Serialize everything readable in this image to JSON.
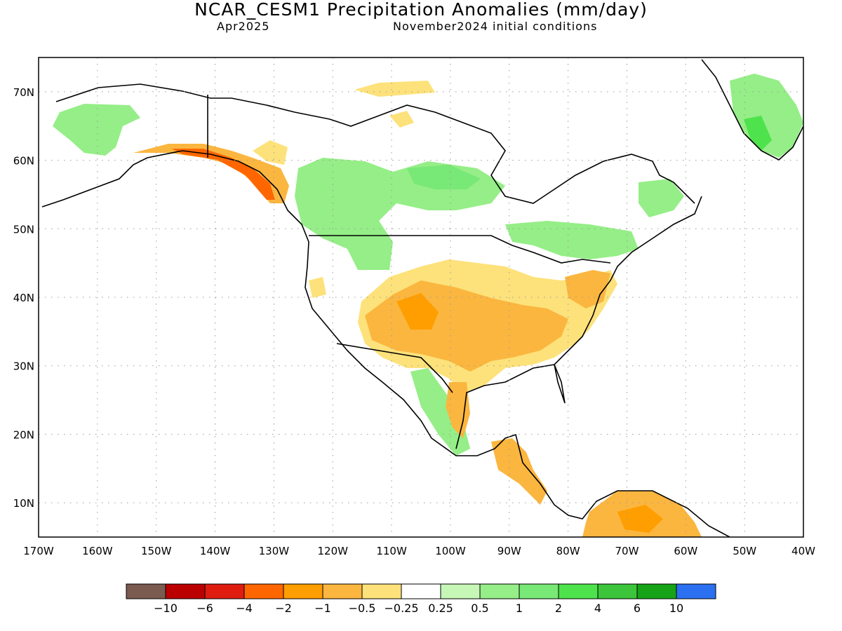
{
  "header": {
    "title": "NCAR_CESM1 Precipitation Anomalies (mm/day)",
    "valid_month": "Apr2025",
    "initial_conditions": "November2024 initial conditions"
  },
  "map": {
    "lat_labels": [
      "70N",
      "60N",
      "50N",
      "40N",
      "30N",
      "20N",
      "10N"
    ],
    "lon_labels": [
      "170W",
      "160W",
      "150W",
      "140W",
      "130W",
      "120W",
      "110W",
      "100W",
      "90W",
      "80W",
      "70W",
      "60W",
      "50W",
      "40W"
    ],
    "extent": {
      "lon_min": -170,
      "lon_max": -40,
      "lat_min": 5,
      "lat_max": 75
    },
    "gridlines": true
  },
  "colorbar": {
    "colors": [
      "#7b5a4f",
      "#bb0000",
      "#de1d10",
      "#ff6600",
      "#ff9e00",
      "#fbb63f",
      "#fde27b",
      "#ffffff",
      "#c7f7b7",
      "#95ee87",
      "#78e876",
      "#4ee34c",
      "#3cc53b",
      "#17a317",
      "#2b70f0"
    ],
    "labels": [
      "−10",
      "−6",
      "−4",
      "−2",
      "−1",
      "−0.5",
      "−0.25",
      "0.25",
      "0.5",
      "1",
      "2",
      "4",
      "6",
      "10"
    ]
  },
  "anomaly_colors": {
    "light_orange": "#fde27b",
    "orange": "#fbb63f",
    "dark_orange": "#ff9e00",
    "red_orange": "#ff6600",
    "light_green": "#c7f7b7",
    "green": "#95ee87",
    "mid_green": "#78e876",
    "bright_green": "#4ee34c"
  }
}
